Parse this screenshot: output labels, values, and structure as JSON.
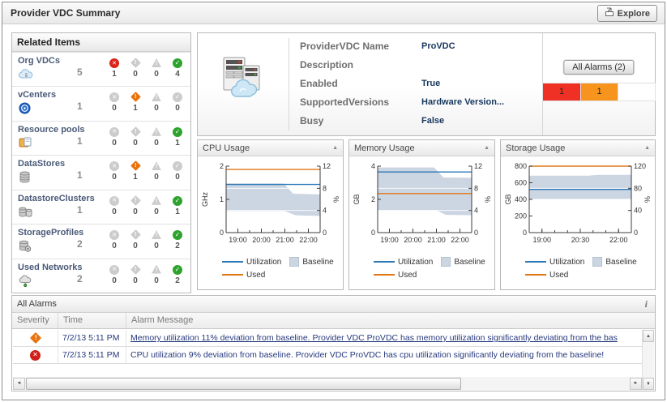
{
  "window": {
    "title": "Provider VDC Summary",
    "explore_label": "Explore"
  },
  "icons": {
    "collapse": "▲",
    "info": "i",
    "scroll_up": "▲",
    "scroll_down": "▼",
    "scroll_left": "◄",
    "scroll_right": "►"
  },
  "theme": {
    "fatal_red": "#ee3124",
    "critical_orange": "#f7941e",
    "normal_green": "#2da32d",
    "utilization_blue": "#2e79b8",
    "used_orange": "#e07818",
    "baseline_fill": "#ccd5e2",
    "value_navy": "#17375e"
  },
  "related_items": {
    "header": "Related Items",
    "items": [
      {
        "label": "Org VDCs",
        "count": "5",
        "statuses": [
          {
            "type": "fatal",
            "count": "1",
            "on": "true"
          },
          {
            "type": "critical",
            "count": "0",
            "on": "false"
          },
          {
            "type": "warning",
            "count": "0",
            "on": "false"
          },
          {
            "type": "normal",
            "count": "4",
            "on": "true"
          }
        ]
      },
      {
        "label": "vCenters",
        "count": "1",
        "statuses": [
          {
            "type": "fatal",
            "count": "0",
            "on": "false"
          },
          {
            "type": "critical",
            "count": "1",
            "on": "true"
          },
          {
            "type": "warning",
            "count": "0",
            "on": "false"
          },
          {
            "type": "normal",
            "count": "0",
            "on": "false"
          }
        ]
      },
      {
        "label": "Resource pools",
        "count": "1",
        "statuses": [
          {
            "type": "fatal",
            "count": "0",
            "on": "false"
          },
          {
            "type": "critical",
            "count": "0",
            "on": "false"
          },
          {
            "type": "warning",
            "count": "0",
            "on": "false"
          },
          {
            "type": "normal",
            "count": "1",
            "on": "true"
          }
        ]
      },
      {
        "label": "DataStores",
        "count": "1",
        "statuses": [
          {
            "type": "fatal",
            "count": "0",
            "on": "false"
          },
          {
            "type": "critical",
            "count": "1",
            "on": "true"
          },
          {
            "type": "warning",
            "count": "0",
            "on": "false"
          },
          {
            "type": "normal",
            "count": "0",
            "on": "false"
          }
        ]
      },
      {
        "label": "DatastoreClusters",
        "count": "1",
        "statuses": [
          {
            "type": "fatal",
            "count": "0",
            "on": "false"
          },
          {
            "type": "critical",
            "count": "0",
            "on": "false"
          },
          {
            "type": "warning",
            "count": "0",
            "on": "false"
          },
          {
            "type": "normal",
            "count": "1",
            "on": "true"
          }
        ]
      },
      {
        "label": "StorageProfiles",
        "count": "2",
        "statuses": [
          {
            "type": "fatal",
            "count": "0",
            "on": "false"
          },
          {
            "type": "critical",
            "count": "0",
            "on": "false"
          },
          {
            "type": "warning",
            "count": "0",
            "on": "false"
          },
          {
            "type": "normal",
            "count": "2",
            "on": "true"
          }
        ]
      },
      {
        "label": "Used Networks",
        "count": "2",
        "statuses": [
          {
            "type": "fatal",
            "count": "0",
            "on": "false"
          },
          {
            "type": "critical",
            "count": "0",
            "on": "false"
          },
          {
            "type": "warning",
            "count": "0",
            "on": "false"
          },
          {
            "type": "normal",
            "count": "2",
            "on": "true"
          }
        ]
      }
    ]
  },
  "summary": {
    "fields": [
      {
        "label": "ProviderVDC Name",
        "value": "ProVDC"
      },
      {
        "label": "Description",
        "value": ""
      },
      {
        "label": "Enabled",
        "value": "True"
      },
      {
        "label": "SupportedVersions",
        "value": "Hardware Version..."
      },
      {
        "label": "Busy",
        "value": "False"
      }
    ],
    "all_alarms_button": "All Alarms (2)",
    "badges": [
      {
        "severity": "fatal",
        "count": "1"
      },
      {
        "severity": "critical",
        "count": "1"
      },
      {
        "severity": "warning",
        "count": ""
      }
    ]
  },
  "chart_legend": {
    "utilization": "Utilization",
    "baseline": "Baseline",
    "used": "Used"
  },
  "chart_data": [
    {
      "type": "line",
      "title": "CPU Usage",
      "ylabel": "GHz",
      "y2label": "%",
      "ylim": [
        0,
        2
      ],
      "yticks": [
        0,
        1,
        2
      ],
      "y2lim": [
        0,
        12
      ],
      "y2ticks": [
        0,
        4,
        8,
        12
      ],
      "xlim": [
        18.5,
        22.5
      ],
      "xticks": [
        19,
        20,
        21,
        22
      ],
      "xtick_labels": [
        "19:00",
        "20:00",
        "21:00",
        "22:00"
      ],
      "minor_dx": 0.5,
      "series": [
        {
          "name": "Used",
          "color": "#e07818",
          "points": [
            [
              18.5,
              1.9
            ],
            [
              22.5,
              1.9
            ]
          ]
        },
        {
          "name": "Utilization",
          "color": "#2e79b8",
          "points": [
            [
              18.5,
              1.45
            ],
            [
              22.5,
              1.45
            ]
          ]
        }
      ],
      "baseline": {
        "color": "#ccd5e2",
        "top": [
          [
            18.5,
            1.48
          ],
          [
            20.95,
            1.48
          ],
          [
            21.35,
            1.17
          ],
          [
            22.5,
            1.15
          ]
        ],
        "bottom": [
          [
            18.5,
            0.65
          ],
          [
            21.0,
            0.65
          ],
          [
            21.45,
            0.52
          ],
          [
            22.5,
            0.5
          ]
        ]
      }
    },
    {
      "type": "line",
      "title": "Memory Usage",
      "ylabel": "GB",
      "y2label": "%",
      "ylim": [
        0,
        4
      ],
      "yticks": [
        0,
        2,
        4
      ],
      "y2lim": [
        0,
        12
      ],
      "y2ticks": [
        0,
        4,
        8,
        12
      ],
      "xlim": [
        18.5,
        22.5
      ],
      "xticks": [
        19,
        20,
        21,
        22
      ],
      "xtick_labels": [
        "19:00",
        "20:00",
        "21:00",
        "22:00"
      ],
      "minor_dx": 0.5,
      "series": [
        {
          "name": "Used",
          "color": "#e07818",
          "points": [
            [
              18.5,
              2.35
            ],
            [
              22.5,
              2.35
            ]
          ]
        },
        {
          "name": "Utilization",
          "color": "#2e79b8",
          "points": [
            [
              18.5,
              3.65
            ],
            [
              22.5,
              3.65
            ]
          ]
        }
      ],
      "baseline": {
        "color": "#ccd5e2",
        "top": [
          [
            18.5,
            3.92
          ],
          [
            20.9,
            3.92
          ],
          [
            21.3,
            3.32
          ],
          [
            22.5,
            3.3
          ]
        ],
        "bottom": [
          [
            18.5,
            1.35
          ],
          [
            21.0,
            1.35
          ],
          [
            21.4,
            1.07
          ],
          [
            22.5,
            1.05
          ]
        ]
      }
    },
    {
      "type": "line",
      "title": "Storage Usage",
      "ylabel": "GB",
      "y2label": "%",
      "ylim": [
        0,
        800
      ],
      "yticks": [
        0,
        200,
        400,
        600,
        800
      ],
      "y2lim": [
        0,
        120
      ],
      "y2ticks": [
        0,
        40,
        80,
        120
      ],
      "xlim": [
        18.5,
        22.5
      ],
      "xticks": [
        19,
        20.5,
        22
      ],
      "xtick_labels": [
        "19:00",
        "20:30",
        "22:00"
      ],
      "minor_dx": 0.5,
      "series": [
        {
          "name": "Used",
          "color": "#e07818",
          "points": [
            [
              18.5,
              800
            ],
            [
              22.5,
              800
            ]
          ]
        },
        {
          "name": "Utilization",
          "color": "#2e79b8",
          "points": [
            [
              18.5,
              520
            ],
            [
              22.5,
              520
            ]
          ]
        }
      ],
      "baseline": {
        "color": "#ccd5e2",
        "top": [
          [
            18.5,
            685
          ],
          [
            20.8,
            685
          ],
          [
            21.2,
            695
          ],
          [
            22.5,
            695
          ]
        ],
        "bottom": [
          [
            18.5,
            405
          ],
          [
            22.5,
            405
          ]
        ]
      }
    }
  ],
  "alarm_table": {
    "title": "All Alarms",
    "columns": [
      "Severity",
      "Time",
      "Alarm Message"
    ],
    "rows": [
      {
        "severity": "critical",
        "time": "7/2/13 5:11 PM",
        "underline": "true",
        "message": "Memory utilization 11% deviation from baseline. Provider VDC ProVDC has memory utilization significantly deviating from the bas"
      },
      {
        "severity": "fatal",
        "time": "7/2/13 5:11 PM",
        "underline": "false",
        "message": "CPU utilization 9% deviation from baseline. Provider VDC ProVDC has cpu utilization significantly deviating from the baseline!"
      }
    ]
  }
}
